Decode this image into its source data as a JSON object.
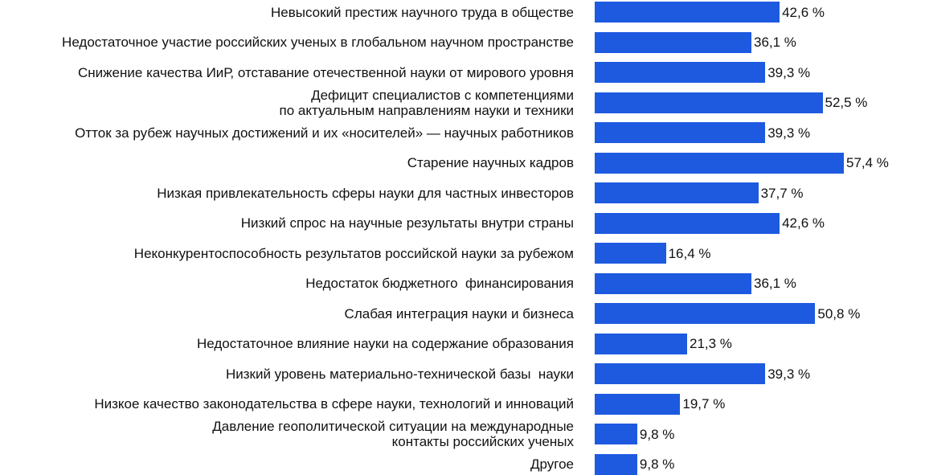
{
  "chart_data": {
    "type": "bar",
    "orientation": "horizontal",
    "value_suffix": " %",
    "bar_color": "#1d5ae0",
    "categories": [
      "Невысокий престиж научного труда в обществе",
      "Недостаточное участие российских ученых в глобальном научном пространстве",
      "Снижение качества ИиР, отставание отечественной науки от мирового уровня",
      "Дефицит специалистов с компетенциями\nпо актуальным направлениям науки и техники",
      "Отток за рубеж научных достижений и их «носителей» — научных работников",
      "Старение научных кадров",
      "Низкая привлекательность сферы науки для частных инвесторов",
      "Низкий спрос на научные результаты внутри страны",
      "Неконкурентоспособность результатов российской науки за рубежом",
      "Недостаток бюджетного  финансирования",
      "Слабая интеграция науки и бизнеса",
      "Недостаточное влияние науки на содержание образования",
      "Низкий уровень материально-технической базы  науки",
      "Низкое качество законодательства в сфере науки, технологий и инноваций",
      "Давление геополитической ситуации на международные\nконтакты российских ученых",
      "Другое"
    ],
    "values": [
      42.6,
      36.1,
      39.3,
      52.5,
      39.3,
      57.4,
      37.7,
      42.6,
      16.4,
      36.1,
      50.8,
      21.3,
      39.3,
      19.7,
      9.8,
      9.8
    ],
    "value_labels": [
      "42,6 %",
      "36,1 %",
      "39,3 %",
      "52,5 %",
      "39,3 %",
      "57,4 %",
      "37,7 %",
      "42,6 %",
      "16,4 %",
      "36,1 %",
      "50,8 %",
      "21,3 %",
      "39,3 %",
      "19,7 %",
      "9,8 %",
      "9,8 %"
    ]
  }
}
